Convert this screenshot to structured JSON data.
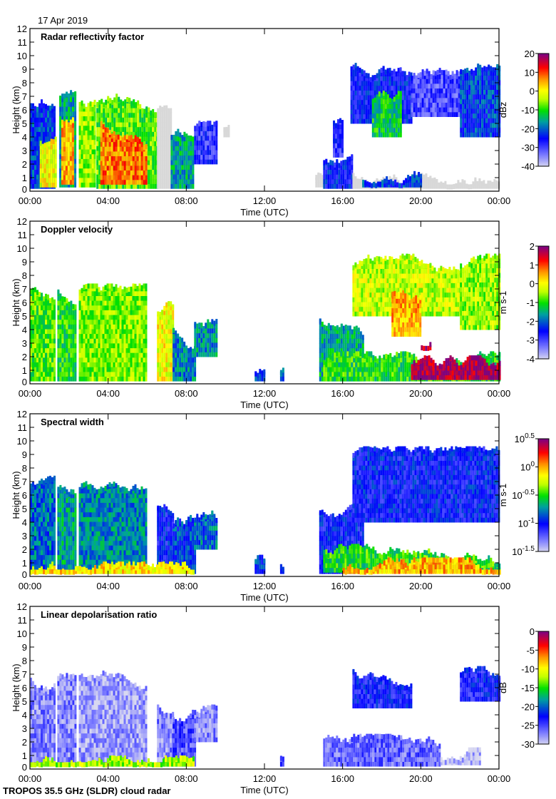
{
  "date": "17 Apr 2019",
  "footer": "TROPOS 35.5 GHz (SLDR) cloud radar",
  "chart_data": [
    {
      "type": "heatmap",
      "title": "Radar reflectivity factor",
      "xlabel": "Time (UTC)",
      "ylabel": "Height (km)",
      "xticks": [
        "00:00",
        "04:00",
        "08:00",
        "12:00",
        "16:00",
        "20:00",
        "00:00"
      ],
      "yticks": [
        "0",
        "1",
        "2",
        "3",
        "4",
        "5",
        "6",
        "7",
        "8",
        "9",
        "10",
        "11",
        "12"
      ],
      "xlim": [
        0,
        24
      ],
      "ylim": [
        0,
        12
      ],
      "colorbar": {
        "label": "dBz",
        "range": [
          -40,
          20
        ],
        "ticks": [
          "20",
          "10",
          "0",
          "-10",
          "-20",
          "-30",
          "-40"
        ]
      },
      "segments_note": "[start_h, end_h, base_km, top_km, value]; value below range = grey clutter",
      "segments": [
        [
          0,
          1.3,
          0.2,
          6.5,
          -22
        ],
        [
          0.5,
          1.3,
          0.3,
          4,
          0
        ],
        [
          1.5,
          2.3,
          0.3,
          7,
          -15
        ],
        [
          1.6,
          2.2,
          0.5,
          5,
          5
        ],
        [
          2.5,
          3.3,
          0.3,
          6.5,
          -5
        ],
        [
          3.4,
          6.5,
          0.2,
          6.8,
          -8
        ],
        [
          3.6,
          6,
          0.5,
          5,
          8
        ],
        [
          6.5,
          7.2,
          0.2,
          6,
          -45
        ],
        [
          7.2,
          8.4,
          0.2,
          4,
          -15
        ],
        [
          8.4,
          9.5,
          2,
          4.6,
          -28
        ],
        [
          9.9,
          10.2,
          4,
          5,
          -45
        ],
        [
          14.6,
          15,
          0.3,
          1,
          -45
        ],
        [
          15,
          16.5,
          0.2,
          2.2,
          -25
        ],
        [
          15.5,
          16,
          2.5,
          5,
          -28
        ],
        [
          16.5,
          24,
          0.2,
          1.5,
          -45
        ],
        [
          17,
          20,
          0.3,
          1,
          -22
        ],
        [
          16.4,
          19.5,
          5,
          9,
          -25
        ],
        [
          17.5,
          19,
          4,
          7,
          -12
        ],
        [
          19.5,
          22,
          5.5,
          8.5,
          -30
        ],
        [
          22,
          24,
          4,
          9,
          -22
        ]
      ]
    },
    {
      "type": "heatmap",
      "title": "Doppler velocity",
      "xlabel": "Time (UTC)",
      "ylabel": "Height (km)",
      "xticks": [
        "00:00",
        "04:00",
        "08:00",
        "12:00",
        "16:00",
        "20:00",
        "00:00"
      ],
      "yticks": [
        "0",
        "1",
        "2",
        "3",
        "4",
        "5",
        "6",
        "7",
        "8",
        "9",
        "10",
        "11",
        "12"
      ],
      "xlim": [
        0,
        24
      ],
      "ylim": [
        0,
        12
      ],
      "colorbar": {
        "label": "m s-1",
        "range": [
          -4,
          2
        ],
        "ticks": [
          "2",
          "1",
          "0",
          "-1",
          "-2",
          "-3",
          "-4"
        ]
      },
      "segments": [
        [
          0,
          1.3,
          0.2,
          7,
          -0.8
        ],
        [
          1.4,
          2.3,
          0.2,
          6.8,
          -1
        ],
        [
          2.5,
          6,
          0.2,
          6.8,
          -0.6
        ],
        [
          6.5,
          7.3,
          0.2,
          5.5,
          0
        ],
        [
          7.3,
          8.4,
          0.2,
          4,
          -1.8
        ],
        [
          8.4,
          9.5,
          2,
          4.6,
          -1.7
        ],
        [
          11.5,
          12,
          0.2,
          1,
          -2
        ],
        [
          12.8,
          13,
          0.2,
          1,
          -2
        ],
        [
          14.8,
          17,
          0.2,
          5,
          -1.5
        ],
        [
          16.5,
          22,
          5,
          9,
          -0.3
        ],
        [
          18.5,
          20,
          3.5,
          7,
          0.5
        ],
        [
          22,
          24,
          4,
          9,
          -0.5
        ],
        [
          15,
          24,
          0.2,
          1.8,
          -1
        ],
        [
          19.5,
          24,
          0.3,
          1.5,
          1.8
        ],
        [
          20,
          20.5,
          2.5,
          3,
          1.8
        ]
      ]
    },
    {
      "type": "heatmap",
      "title": "Spectral width",
      "xlabel": "Time (UTC)",
      "ylabel": "Height (km)",
      "xticks": [
        "00:00",
        "04:00",
        "08:00",
        "12:00",
        "16:00",
        "20:00",
        "00:00"
      ],
      "yticks": [
        "0",
        "1",
        "2",
        "3",
        "4",
        "5",
        "6",
        "7",
        "8",
        "9",
        "10",
        "11",
        "12"
      ],
      "xlim": [
        0,
        24
      ],
      "ylim": [
        0,
        12
      ],
      "colorbar": {
        "label": "m s-1",
        "scale": "log10",
        "range": [
          -1.5,
          0.5
        ],
        "ticks": [
          "10^0.5",
          "10^0",
          "10^-0.5",
          "10^-1",
          "10^-1.5"
        ]
      },
      "segments": [
        [
          0,
          1.3,
          0.2,
          7,
          -0.8
        ],
        [
          1.4,
          2.3,
          0.2,
          6.8,
          -0.7
        ],
        [
          2.5,
          6,
          0.2,
          6.8,
          -0.75
        ],
        [
          6.5,
          7.3,
          0.2,
          5.5,
          -1
        ],
        [
          7.3,
          8.4,
          0.2,
          4,
          -0.9
        ],
        [
          8.4,
          9.5,
          2,
          4.6,
          -0.8
        ],
        [
          11.5,
          12,
          0.2,
          1,
          -0.9
        ],
        [
          12.8,
          13,
          0.2,
          1,
          -0.9
        ],
        [
          0,
          8.4,
          0.2,
          0.5,
          -0.1
        ],
        [
          14.8,
          17,
          0.2,
          5,
          -1
        ],
        [
          16.5,
          24,
          4,
          9,
          -1
        ],
        [
          15,
          24,
          0.3,
          1.8,
          -0.5
        ],
        [
          16,
          24,
          0.2,
          0.8,
          0
        ]
      ]
    },
    {
      "type": "heatmap",
      "title": "Linear depolarisation ratio",
      "xlabel": "Time (UTC)",
      "ylabel": "Height (km)",
      "xticks": [
        "00:00",
        "04:00",
        "08:00",
        "12:00",
        "16:00",
        "20:00",
        "00:00"
      ],
      "yticks": [
        "0",
        "1",
        "2",
        "3",
        "4",
        "5",
        "6",
        "7",
        "8",
        "9",
        "10",
        "11",
        "12"
      ],
      "xlim": [
        0,
        24
      ],
      "ylim": [
        0,
        12
      ],
      "colorbar": {
        "label": "dB",
        "range": [
          -30,
          0
        ],
        "ticks": [
          "0",
          "-5",
          "-10",
          "-15",
          "-20",
          "-25",
          "-30"
        ]
      },
      "segments": [
        [
          0,
          1.3,
          0.2,
          6.5,
          -27
        ],
        [
          1.4,
          2.3,
          0.2,
          6.8,
          -27
        ],
        [
          2.5,
          6,
          0.2,
          6.8,
          -28
        ],
        [
          6.5,
          7.3,
          0.2,
          5,
          -27
        ],
        [
          7.3,
          8.4,
          0.2,
          4,
          -25
        ],
        [
          8.4,
          9.5,
          2,
          4.6,
          -27
        ],
        [
          0,
          8.4,
          0.2,
          0.4,
          -12
        ],
        [
          12.8,
          13,
          0.2,
          1,
          -24
        ],
        [
          15,
          21,
          0.2,
          2,
          -26
        ],
        [
          16.5,
          19.5,
          4.5,
          7.5,
          -23
        ],
        [
          22,
          24,
          5,
          7,
          -23
        ],
        [
          21,
          23,
          0.3,
          1,
          -29
        ]
      ]
    }
  ]
}
